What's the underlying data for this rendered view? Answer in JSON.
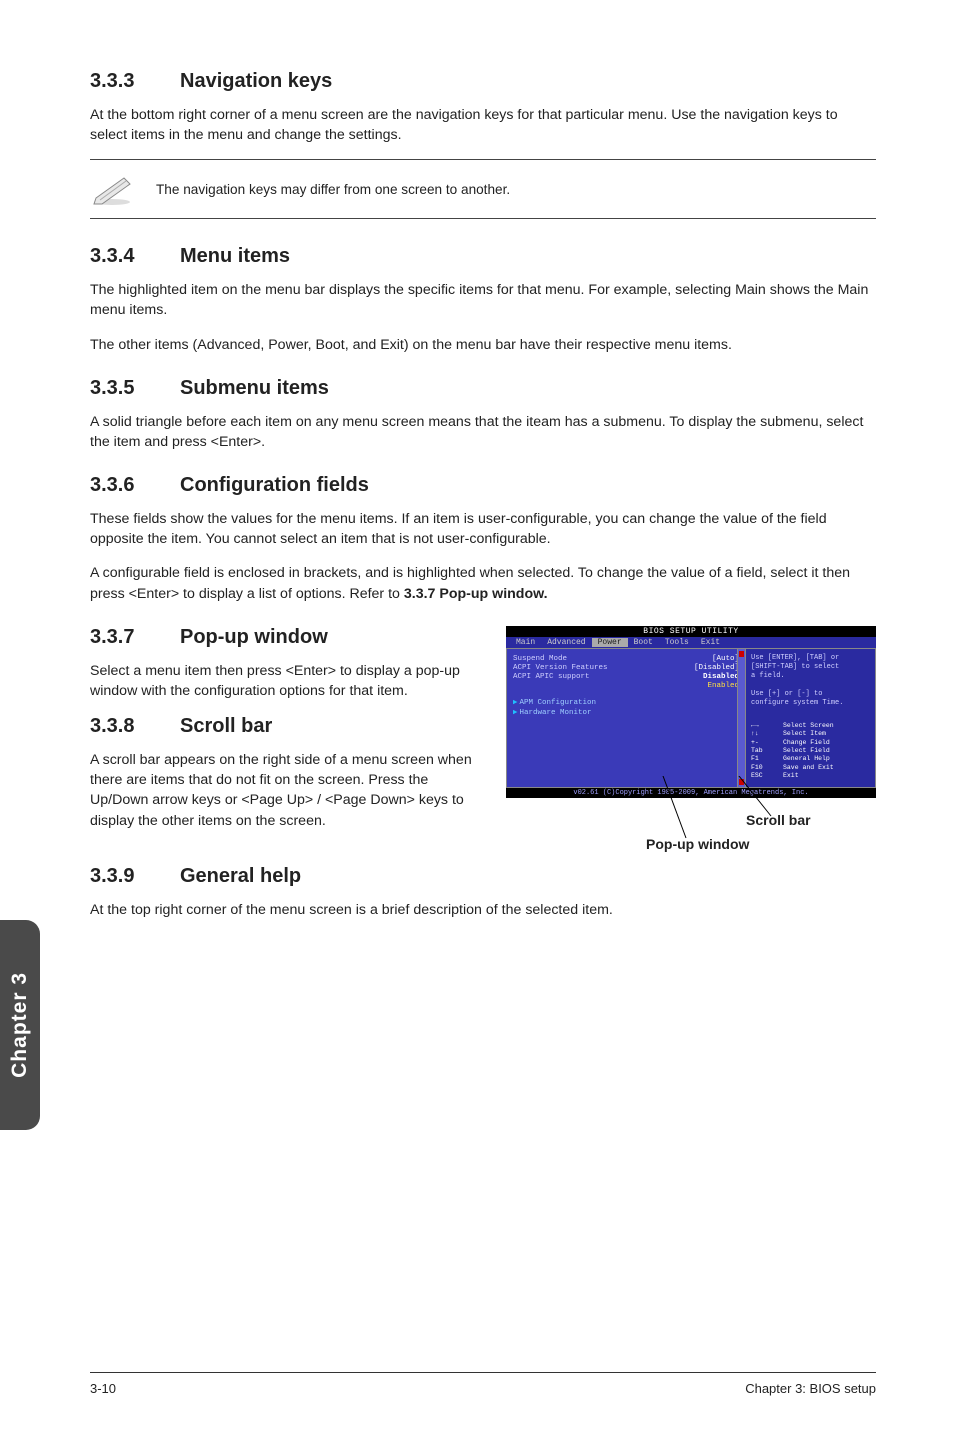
{
  "sections": {
    "s333": {
      "num": "3.3.3",
      "title": "Navigation keys",
      "p1": "At the bottom right corner of a menu screen are the navigation keys for that particular menu. Use the navigation keys to select items in the menu and change the settings.",
      "note": "The navigation keys may differ from one screen to another."
    },
    "s334": {
      "num": "3.3.4",
      "title": "Menu items",
      "p1": "The highlighted item on the menu bar displays the specific items for that menu. For example, selecting Main shows the Main menu items.",
      "p2": "The other items (Advanced, Power, Boot, and Exit) on the menu bar have their respective menu items."
    },
    "s335": {
      "num": "3.3.5",
      "title": "Submenu items",
      "p1": "A solid triangle before each item on any menu screen means that the iteam has a submenu. To display the submenu, select the item and press <Enter>."
    },
    "s336": {
      "num": "3.3.6",
      "title": "Configuration fields",
      "p1": "These fields show the values for the menu items. If an item is user-configurable, you can change the value of the field opposite the item. You cannot select an item that is not user-configurable.",
      "p2": "A configurable field is enclosed in brackets, and is highlighted when selected. To change the value of a field, select it then press <Enter> to display a list of options. Refer to 3.3.7 Pop-up window."
    },
    "s337": {
      "num": "3.3.7",
      "title": "Pop-up window",
      "p1": "Select a menu item then press <Enter> to display a pop-up window with the configuration options for that item."
    },
    "s338": {
      "num": "3.3.8",
      "title": "Scroll bar",
      "p1": "A scroll bar appears on the right side of a menu screen when there are items that do not fit on the screen. Press the Up/Down arrow keys or <Page Up> / <Page Down> keys to display the other items on the screen."
    },
    "s339": {
      "num": "3.3.9",
      "title": "General help",
      "p1": "At the top right corner of the menu screen is a brief description of the selected item."
    }
  },
  "bios": {
    "title": "BIOS SETUP UTILITY",
    "menus": [
      "Main",
      "Advanced",
      "Power",
      "Boot",
      "Tools",
      "Exit"
    ],
    "selected_menu_index": 2,
    "left_rows": [
      {
        "label": "Suspend Mode",
        "value": "[Auto]",
        "val_class": "val"
      },
      {
        "label": "ACPI Version Features",
        "value": "[Disabled]",
        "val_class": "val"
      },
      {
        "label": "ACPI APIC support",
        "value": "Disabled",
        "val_class": "val",
        "bold": true
      },
      {
        "label": "",
        "value": "Enabled",
        "val_class": "yel"
      }
    ],
    "left_sub": [
      "APM Configuration",
      "Hardware Monitor"
    ],
    "help_lines": [
      "Use [ENTER], [TAB] or",
      "[SHIFT-TAB] to select",
      "a field.",
      "",
      "Use [+] or [-] to",
      "configure system Time."
    ],
    "keys": [
      {
        "k": "←→",
        "d": "Select Screen"
      },
      {
        "k": "↑↓",
        "d": "Select Item"
      },
      {
        "k": "+-",
        "d": "Change Field"
      },
      {
        "k": "Tab",
        "d": "Select Field"
      },
      {
        "k": "F1",
        "d": "General Help"
      },
      {
        "k": "F10",
        "d": "Save and Exit"
      },
      {
        "k": "ESC",
        "d": "Exit"
      }
    ],
    "footer": "v02.61 (C)Copyright 1985-2009, American Megatrends, Inc."
  },
  "callouts": {
    "scroll": "Scroll bar",
    "popup": "Pop-up window"
  },
  "sidebar": "Chapter 3",
  "footer": {
    "left": "3-10",
    "right": "Chapter 3: BIOS setup"
  },
  "colors": {
    "bios_dark": "#2a2aa0",
    "bios_light": "#3a3ab8",
    "sidebar": "#4a4a4a"
  }
}
